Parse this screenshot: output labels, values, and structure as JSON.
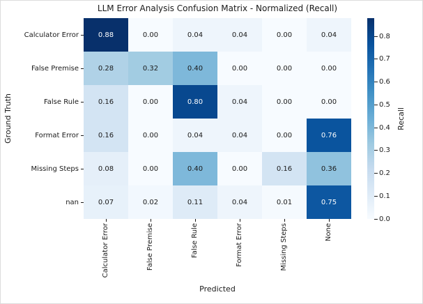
{
  "chart_data": {
    "type": "heatmap",
    "title": "LLM Error Analysis Confusion Matrix - Normalized (Recall)",
    "xlabel": "Predicted",
    "ylabel": "Ground Truth",
    "row_labels": [
      "Calculator Error",
      "False Premise",
      "False Rule",
      "Format Error",
      "Missing Steps",
      "nan"
    ],
    "col_labels": [
      "Calculator Error",
      "False Premise",
      "False Rule",
      "Format Error",
      "Missing Steps",
      "None"
    ],
    "values": [
      [
        0.88,
        0.0,
        0.04,
        0.04,
        0.0,
        0.04
      ],
      [
        0.28,
        0.32,
        0.4,
        0.0,
        0.0,
        0.0
      ],
      [
        0.16,
        0.0,
        0.8,
        0.04,
        0.0,
        0.0
      ],
      [
        0.16,
        0.0,
        0.04,
        0.04,
        0.0,
        0.76
      ],
      [
        0.08,
        0.0,
        0.4,
        0.0,
        0.16,
        0.36
      ],
      [
        0.07,
        0.02,
        0.11,
        0.04,
        0.01,
        0.75
      ]
    ],
    "vmin": 0.0,
    "vmax": 0.88,
    "colormap": "Blues",
    "grid": false,
    "legend_position": "none",
    "colorbar": {
      "label": "Recall",
      "ticks": [
        0.0,
        0.1,
        0.2,
        0.3,
        0.4,
        0.5,
        0.6,
        0.7,
        0.8
      ],
      "position": "right"
    },
    "colors": {
      "cmap_anchors": [
        "#f7fbff",
        "#deebf7",
        "#c6dbef",
        "#9ecae1",
        "#6baed6",
        "#4292c6",
        "#2171b5",
        "#08519c",
        "#08306b"
      ],
      "annot_dark_text": "#1a1a1a",
      "annot_light_text": "#ffffff"
    }
  }
}
